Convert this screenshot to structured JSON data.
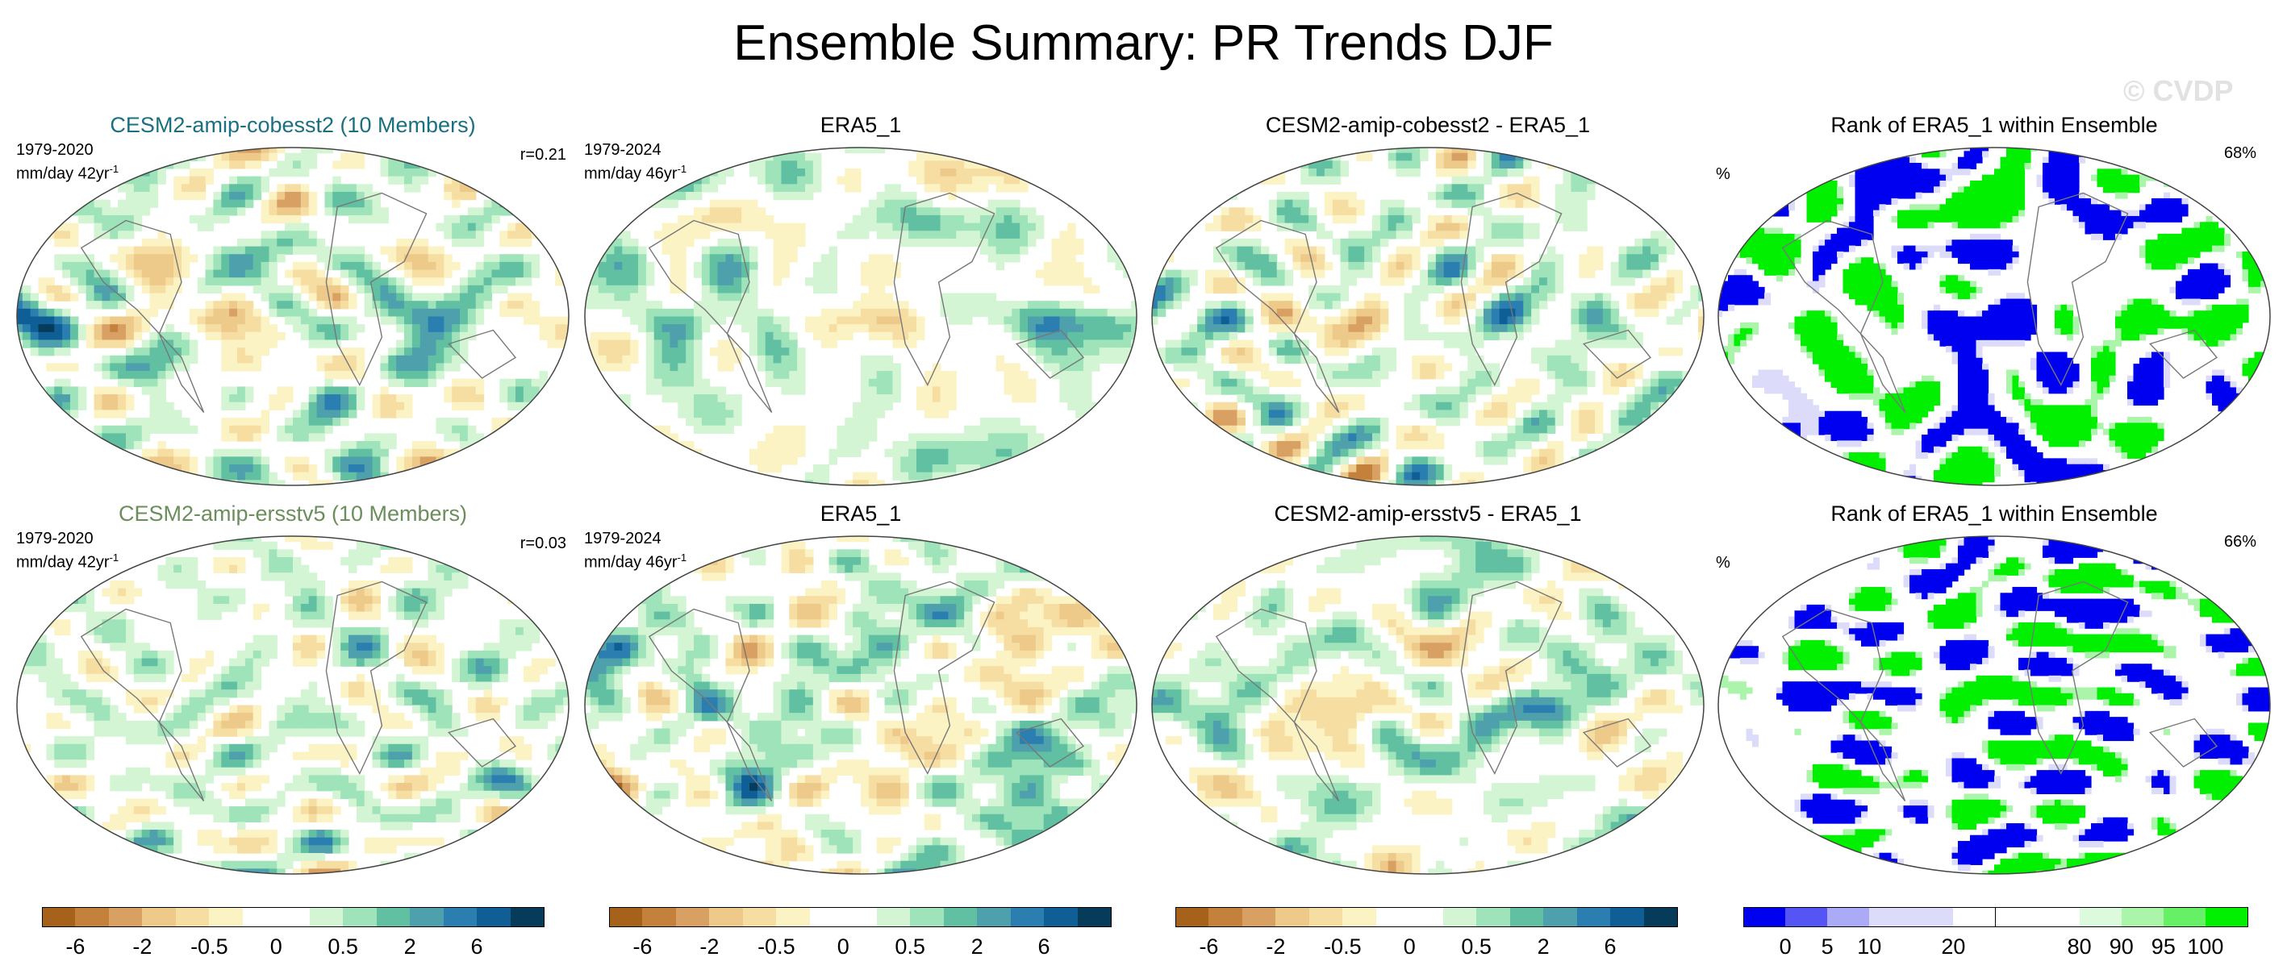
{
  "title": "Ensemble Summary: PR Trends DJF",
  "watermark": "© CVDP",
  "rows": [
    {
      "panels": [
        {
          "title": "CESM2-amip-cobesst2 (10 Members)",
          "title_color": "#1a7080",
          "period": "1979-2020",
          "units": "mm/day 42yr",
          "units_sup": "-1",
          "corr": "r=0.21",
          "kind": "trend",
          "seed": 11
        },
        {
          "title": "ERA5_1",
          "title_color": "#000000",
          "period": "1979-2024",
          "units": "mm/day 46yr",
          "units_sup": "-1",
          "corr": "",
          "kind": "trend",
          "seed": 22
        },
        {
          "title": "CESM2-amip-cobesst2 - ERA5_1",
          "title_color": "#000000",
          "period": "",
          "units": "",
          "units_sup": "",
          "corr": "",
          "kind": "diff",
          "seed": 33
        },
        {
          "title": "Rank of ERA5_1 within Ensemble",
          "title_color": "#000000",
          "period": "",
          "units": "%",
          "units_sup": "",
          "corr": "68%",
          "kind": "rank",
          "seed": 44
        }
      ]
    },
    {
      "panels": [
        {
          "title": "CESM2-amip-ersstv5 (10 Members)",
          "title_color": "#6b8e5c",
          "period": "1979-2020",
          "units": "mm/day 42yr",
          "units_sup": "-1",
          "corr": "r=0.03",
          "kind": "trend",
          "seed": 55
        },
        {
          "title": "ERA5_1",
          "title_color": "#000000",
          "period": "1979-2024",
          "units": "mm/day 46yr",
          "units_sup": "-1",
          "corr": "",
          "kind": "trend",
          "seed": 66
        },
        {
          "title": "CESM2-amip-ersstv5 - ERA5_1",
          "title_color": "#000000",
          "period": "",
          "units": "",
          "units_sup": "",
          "corr": "",
          "kind": "diff",
          "seed": 77
        },
        {
          "title": "Rank of ERA5_1 within Ensemble",
          "title_color": "#000000",
          "period": "",
          "units": "%",
          "units_sup": "",
          "corr": "66%",
          "kind": "rank",
          "seed": 88
        }
      ]
    }
  ],
  "colorbars": [
    {
      "colors": [
        "#a6611a",
        "#c4813c",
        "#d9a063",
        "#edc98a",
        "#f6dea3",
        "#fcf3c5",
        "#ffffff",
        "#ffffff",
        "#d4f5d4",
        "#9ee3b9",
        "#62c0a2",
        "#4ea0ad",
        "#2a7fb0",
        "#0f5e96",
        "#063b5a"
      ],
      "labels": [
        {
          "text": "-6",
          "pos": 1
        },
        {
          "text": "-2",
          "pos": 3
        },
        {
          "text": "-0.5",
          "pos": 5
        },
        {
          "text": "0",
          "pos": 7
        },
        {
          "text": "0.5",
          "pos": 9
        },
        {
          "text": "2",
          "pos": 11
        },
        {
          "text": "6",
          "pos": 13
        }
      ]
    },
    {
      "colors": [
        "#a6611a",
        "#c4813c",
        "#d9a063",
        "#edc98a",
        "#f6dea3",
        "#fcf3c5",
        "#ffffff",
        "#ffffff",
        "#d4f5d4",
        "#9ee3b9",
        "#62c0a2",
        "#4ea0ad",
        "#2a7fb0",
        "#0f5e96",
        "#063b5a"
      ],
      "labels": [
        {
          "text": "-6",
          "pos": 1
        },
        {
          "text": "-2",
          "pos": 3
        },
        {
          "text": "-0.5",
          "pos": 5
        },
        {
          "text": "0",
          "pos": 7
        },
        {
          "text": "0.5",
          "pos": 9
        },
        {
          "text": "2",
          "pos": 11
        },
        {
          "text": "6",
          "pos": 13
        }
      ]
    },
    {
      "colors": [
        "#a6611a",
        "#c4813c",
        "#d9a063",
        "#edc98a",
        "#f6dea3",
        "#fcf3c5",
        "#ffffff",
        "#ffffff",
        "#d4f5d4",
        "#9ee3b9",
        "#62c0a2",
        "#4ea0ad",
        "#2a7fb0",
        "#0f5e96",
        "#063b5a"
      ],
      "labels": [
        {
          "text": "-6",
          "pos": 1
        },
        {
          "text": "-2",
          "pos": 3
        },
        {
          "text": "-0.5",
          "pos": 5
        },
        {
          "text": "0",
          "pos": 7
        },
        {
          "text": "0.5",
          "pos": 9
        },
        {
          "text": "2",
          "pos": 11
        },
        {
          "text": "6",
          "pos": 13
        }
      ]
    },
    {
      "colors": [
        "#0000f0",
        "#5555f5",
        "#aaaaf7",
        "#dcdcfa",
        "#dcdcfa",
        "#ffffff",
        "#ffffff",
        "#ffffff",
        "#dcfadc",
        "#aaf5aa",
        "#66f066",
        "#00f000"
      ],
      "labels": [
        {
          "text": "0",
          "pos": 1
        },
        {
          "text": "5",
          "pos": 2
        },
        {
          "text": "10",
          "pos": 3
        },
        {
          "text": "20",
          "pos": 5
        },
        {
          "text": "80",
          "pos": 8
        },
        {
          "text": "90",
          "pos": 9
        },
        {
          "text": "95",
          "pos": 10
        },
        {
          "text": "100",
          "pos": 11
        }
      ]
    }
  ]
}
